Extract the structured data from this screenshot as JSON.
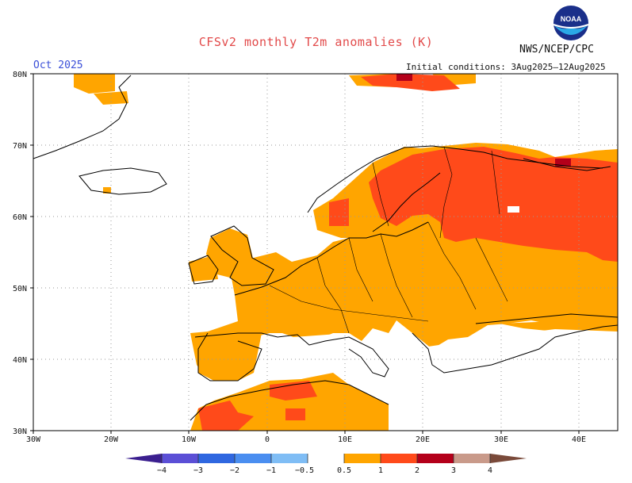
{
  "header": {
    "title": "CFSv2 monthly T2m anomalies (K)",
    "month": "Oct 2025",
    "agency": "NWS/NCEP/CPC",
    "initial_conditions": "Initial conditions: 3Aug2025–12Aug2025",
    "logo_text": "NOAA"
  },
  "axes": {
    "lat_labels": [
      "80N",
      "70N",
      "60N",
      "50N",
      "40N",
      "30N"
    ],
    "lon_labels": [
      "30W",
      "20W",
      "10W",
      "0",
      "10E",
      "20E",
      "30E",
      "40E"
    ]
  },
  "colorbar": {
    "colors": [
      "#3b1f8f",
      "#5b4fd6",
      "#2f67e0",
      "#4a8ef0",
      "#7fbdf5",
      "#ffffff",
      "#ffa500",
      "#ff4a1a",
      "#b4001a",
      "#c99a8a",
      "#7a4a3a"
    ],
    "tick_labels": [
      "−4",
      "−3",
      "−2",
      "−1",
      "−0.5",
      "0.5",
      "1",
      "2",
      "3",
      "4"
    ]
  },
  "map_fill_colors": {
    "anomaly_0_5_to_1": "#ffa500",
    "anomaly_1_to_2": "#ff4a1a",
    "anomaly_2_to_3": "#b4001a"
  }
}
